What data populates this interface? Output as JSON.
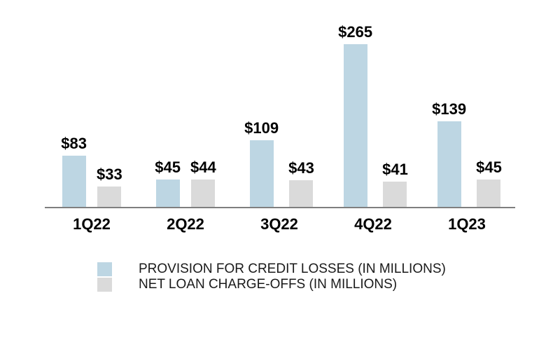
{
  "chart_data": {
    "type": "bar",
    "title": "",
    "categories": [
      "1Q22",
      "2Q22",
      "3Q22",
      "4Q22",
      "1Q23"
    ],
    "series": [
      {
        "name": "PROVISION FOR CREDIT LOSSES (IN MILLIONS)",
        "color": "#bdd6e3",
        "values": [
          83,
          45,
          109,
          265,
          139
        ],
        "value_labels": [
          "$83",
          "$45",
          "$109",
          "$265",
          "$139"
        ]
      },
      {
        "name": "NET LOAN CHARGE-OFFS (IN MILLIONS)",
        "color": "#dadada",
        "values": [
          33,
          44,
          43,
          41,
          45
        ],
        "value_labels": [
          "$33",
          "$44",
          "$43",
          "$41",
          "$45"
        ]
      }
    ],
    "ylim": [
      0,
      265
    ],
    "value_prefix": "$",
    "grid": false,
    "legend_position": "bottom-left",
    "axis_line_color": "#7f7f7f",
    "background": "#ffffff",
    "text_color": "#000000"
  }
}
